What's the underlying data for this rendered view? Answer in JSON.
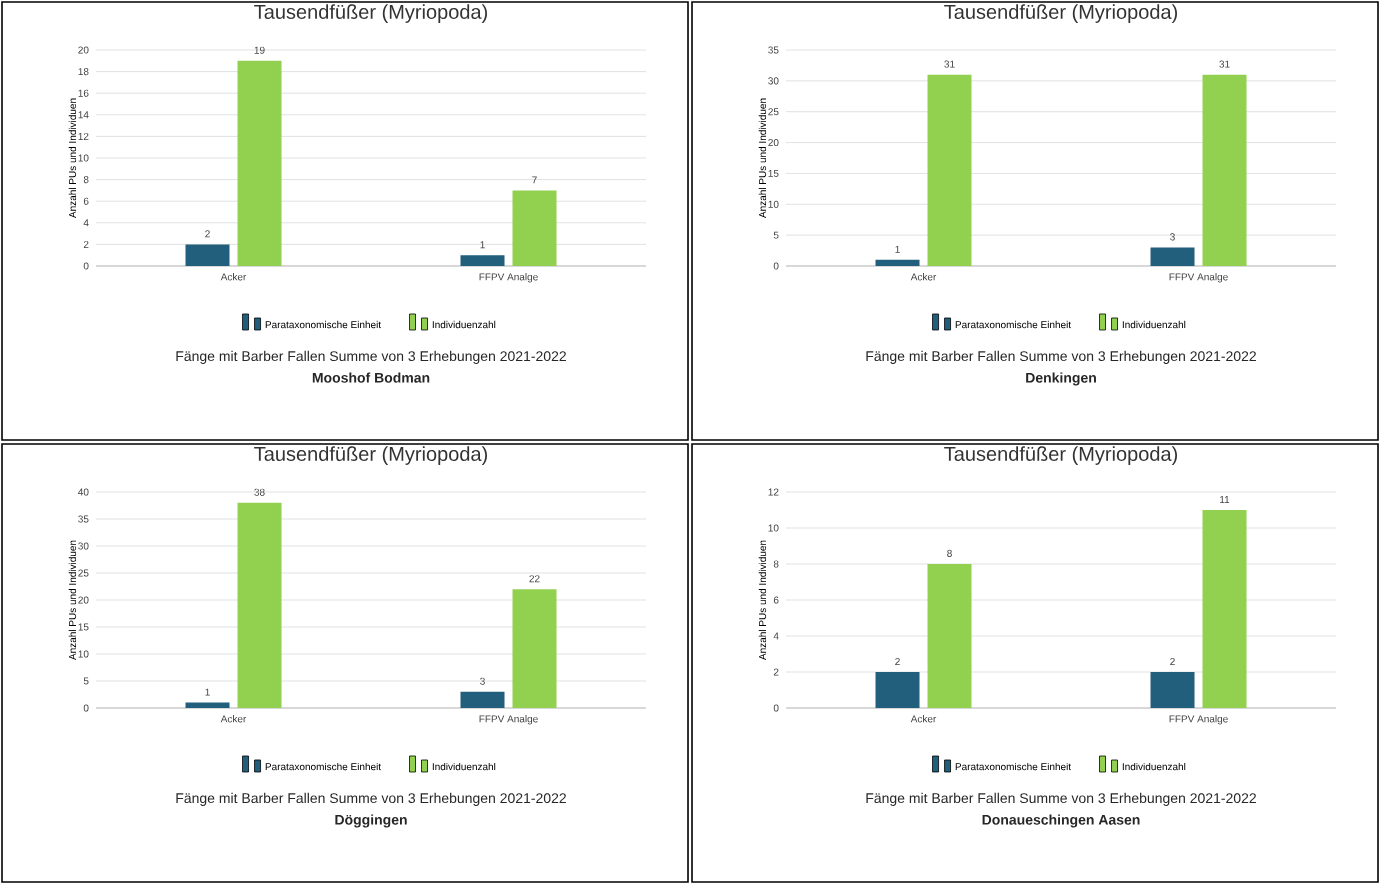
{
  "chart_data": [
    {
      "type": "bar",
      "title": "Tausendfüßer (Myriopoda)",
      "ylabel": "Anzahl PUs und Individuen",
      "categories": [
        "Acker",
        "FFPV Analge"
      ],
      "series": [
        {
          "name": "Parataxonomische Einheit",
          "color": "#215f7c",
          "values": [
            2,
            1
          ]
        },
        {
          "name": "Individuenzahl",
          "color": "#92d050",
          "values": [
            19,
            7
          ]
        }
      ],
      "ylim": [
        0,
        20
      ],
      "yticks": [
        0,
        2,
        4,
        6,
        8,
        10,
        12,
        14,
        16,
        18,
        20
      ],
      "grid": "y",
      "legend": "bottom",
      "data_labels": true,
      "annotations": [
        "Fänge mit Barber Fallen Summe von 3 Erhebungen 2021-2022",
        "Mooshof Bodman"
      ]
    },
    {
      "type": "bar",
      "title": "Tausendfüßer (Myriopoda)",
      "ylabel": "Anzahl PUs und Individuen",
      "categories": [
        "Acker",
        "FFPV Analge"
      ],
      "series": [
        {
          "name": "Parataxonomische Einheit",
          "color": "#215f7c",
          "values": [
            1,
            3
          ]
        },
        {
          "name": "Individuenzahl",
          "color": "#92d050",
          "values": [
            31,
            31
          ]
        }
      ],
      "ylim": [
        0,
        35
      ],
      "yticks": [
        0,
        5,
        10,
        15,
        20,
        25,
        30,
        35
      ],
      "grid": "y",
      "legend": "bottom",
      "data_labels": true,
      "annotations": [
        "Fänge mit Barber Fallen Summe von 3 Erhebungen 2021-2022",
        "Denkingen"
      ]
    },
    {
      "type": "bar",
      "title": "Tausendfüßer (Myriopoda)",
      "ylabel": "Anzahl PUs und Individuen",
      "categories": [
        "Acker",
        "FFPV Analge"
      ],
      "series": [
        {
          "name": "Parataxonomische Einheit",
          "color": "#215f7c",
          "values": [
            1,
            3
          ]
        },
        {
          "name": "Individuenzahl",
          "color": "#92d050",
          "values": [
            38,
            22
          ]
        }
      ],
      "ylim": [
        0,
        40
      ],
      "yticks": [
        0,
        5,
        10,
        15,
        20,
        25,
        30,
        35,
        40
      ],
      "grid": "y",
      "legend": "bottom",
      "data_labels": true,
      "annotations": [
        "Fänge mit Barber Fallen Summe von 3 Erhebungen 2021-2022",
        "Döggingen"
      ]
    },
    {
      "type": "bar",
      "title": "Tausendfüßer (Myriopoda)",
      "ylabel": "Anzahl PUs und Individuen",
      "categories": [
        "Acker",
        "FFPV Analge"
      ],
      "series": [
        {
          "name": "Parataxonomische Einheit",
          "color": "#215f7c",
          "values": [
            2,
            2
          ]
        },
        {
          "name": "Individuenzahl",
          "color": "#92d050",
          "values": [
            8,
            11
          ]
        }
      ],
      "ylim": [
        0,
        12
      ],
      "yticks": [
        0,
        2,
        4,
        6,
        8,
        10,
        12
      ],
      "grid": "y",
      "legend": "bottom",
      "data_labels": true,
      "annotations": [
        "Fänge mit Barber Fallen Summe von 3 Erhebungen 2021-2022",
        "Donaueschingen Aasen"
      ]
    }
  ]
}
